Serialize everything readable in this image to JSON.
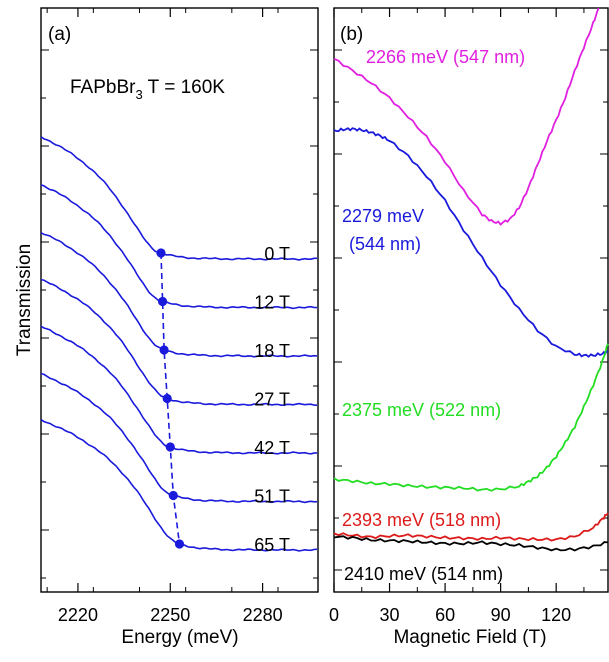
{
  "chart_data": [
    {
      "type": "line",
      "panel_label": "(a)",
      "annotation": {
        "base": "FAPbBr",
        "sub": "3",
        "rest": " T = 160K"
      },
      "xlabel": "Energy (meV)",
      "ylabel": "Transmission",
      "xlim": [
        2208,
        2298
      ],
      "xticks": [
        2220,
        2250,
        2280
      ],
      "xtick_labels": [
        "2220",
        "2250",
        "2280"
      ],
      "y_ticks_unlabeled": true,
      "color": "#1a1adc",
      "series": [
        {
          "name": "0 T",
          "edge_x": 2247.0
        },
        {
          "name": "12 T",
          "edge_x": 2247.5
        },
        {
          "name": "18 T",
          "edge_x": 2248.0
        },
        {
          "name": "27 T",
          "edge_x": 2249.0
        },
        {
          "name": "42 T",
          "edge_x": 2250.0
        },
        {
          "name": "51 T",
          "edge_x": 2251.0
        },
        {
          "name": "65 T",
          "edge_x": 2253.0
        }
      ]
    },
    {
      "type": "line",
      "panel_label": "(b)",
      "xlabel": "Magnetic Field (T)",
      "xlim": [
        0,
        148
      ],
      "xticks": [
        0,
        30,
        60,
        90,
        120
      ],
      "xtick_labels": [
        "0",
        "30",
        "60",
        "90",
        "120"
      ],
      "y_ticks_unlabeled": true,
      "series": [
        {
          "name": "2266 meV (547 nm)",
          "color": "#e020e0",
          "x": [
            0,
            10,
            20,
            30,
            40,
            50,
            60,
            70,
            80,
            85,
            90,
            95,
            100,
            105,
            110,
            115,
            120,
            125,
            130,
            135,
            140,
            143
          ],
          "y": [
            0.913,
            0.893,
            0.872,
            0.846,
            0.814,
            0.779,
            0.737,
            0.687,
            0.647,
            0.635,
            0.631,
            0.638,
            0.658,
            0.692,
            0.732,
            0.772,
            0.808,
            0.847,
            0.892,
            0.933,
            0.974,
            1.0
          ]
        },
        {
          "name": "2279 meV\n(544 nm)",
          "color": "#1a1adc",
          "x": [
            0,
            5,
            10,
            15,
            20,
            25,
            30,
            40,
            50,
            60,
            70,
            80,
            90,
            100,
            110,
            120,
            130,
            135,
            140,
            145,
            148
          ],
          "y": [
            0.789,
            0.792,
            0.793,
            0.791,
            0.787,
            0.781,
            0.773,
            0.747,
            0.712,
            0.67,
            0.62,
            0.572,
            0.526,
            0.484,
            0.448,
            0.42,
            0.407,
            0.405,
            0.405,
            0.408,
            0.412
          ]
        },
        {
          "name": "2375 meV (522 nm)",
          "color": "#22dd22",
          "x": [
            0,
            10,
            20,
            30,
            40,
            50,
            60,
            70,
            80,
            90,
            100,
            105,
            110,
            115,
            120,
            125,
            130,
            135,
            140,
            145,
            148
          ],
          "y": [
            0.193,
            0.19,
            0.186,
            0.185,
            0.182,
            0.18,
            0.179,
            0.178,
            0.175,
            0.176,
            0.181,
            0.189,
            0.198,
            0.213,
            0.232,
            0.256,
            0.283,
            0.317,
            0.354,
            0.395,
            0.425
          ]
        },
        {
          "name": "2393 meV (518 nm)",
          "color": "#dd1a1a",
          "x": [
            0,
            10,
            20,
            30,
            40,
            50,
            60,
            70,
            80,
            90,
            100,
            110,
            120,
            130,
            140,
            145,
            148
          ],
          "y": [
            0.1,
            0.097,
            0.094,
            0.096,
            0.097,
            0.095,
            0.093,
            0.092,
            0.091,
            0.093,
            0.091,
            0.09,
            0.09,
            0.095,
            0.11,
            0.125,
            0.135
          ]
        },
        {
          "name": "2410 meV (514 nm)",
          "color": "#000000",
          "x": [
            0,
            10,
            20,
            30,
            40,
            50,
            60,
            70,
            80,
            90,
            100,
            110,
            120,
            130,
            140,
            148
          ],
          "y": [
            0.095,
            0.093,
            0.089,
            0.088,
            0.087,
            0.085,
            0.083,
            0.083,
            0.085,
            0.082,
            0.08,
            0.076,
            0.072,
            0.073,
            0.078,
            0.085
          ]
        }
      ]
    }
  ]
}
